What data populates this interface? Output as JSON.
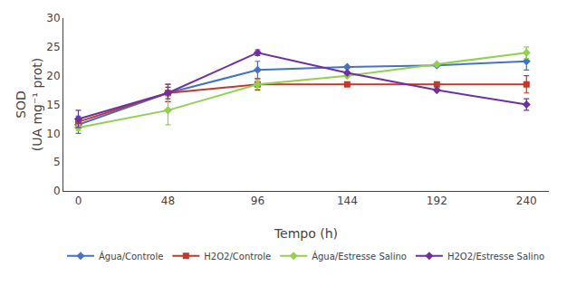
{
  "chart_data": {
    "type": "line",
    "x": [
      0,
      48,
      96,
      144,
      192,
      240
    ],
    "series": [
      {
        "name": "Água/Controle",
        "color": "#4472c4",
        "marker": "diamond",
        "values": [
          11.5,
          17.0,
          21.0,
          21.5,
          21.8,
          22.5
        ],
        "yerr": [
          1.5,
          1.5,
          1.5,
          0.0,
          0.0,
          1.5
        ]
      },
      {
        "name": "H2O2/Controle",
        "color": "#c0392b",
        "marker": "square",
        "values": [
          12.0,
          17.0,
          18.5,
          18.5,
          18.5,
          18.5
        ],
        "yerr": [
          0.5,
          1.5,
          1.0,
          0.0,
          0.0,
          1.5
        ]
      },
      {
        "name": "Água/Estresse Salino",
        "color": "#92d050",
        "marker": "diamond",
        "values": [
          11.0,
          14.0,
          18.5,
          20.0,
          22.0,
          24.0
        ],
        "yerr": [
          0.5,
          2.5,
          0.8,
          0.0,
          0.0,
          1.0
        ]
      },
      {
        "name": "H2O2/Estresse Salino",
        "color": "#7030a0",
        "marker": "diamond",
        "values": [
          12.5,
          17.0,
          24.0,
          20.5,
          17.5,
          15.0
        ],
        "yerr": [
          1.5,
          1.0,
          0.5,
          0.0,
          0.0,
          1.0
        ]
      }
    ],
    "xlabel": "Tempo (h)",
    "ylabel": "SOD\n(UA mg⁻¹ prot)",
    "xlim": [
      -8,
      252
    ],
    "xticks": [
      0,
      48,
      96,
      144,
      192,
      240
    ],
    "ylim": [
      0,
      30
    ],
    "yticks": [
      0,
      5,
      10,
      15,
      20,
      25,
      30
    ],
    "grid": false,
    "legend": "bottom"
  }
}
